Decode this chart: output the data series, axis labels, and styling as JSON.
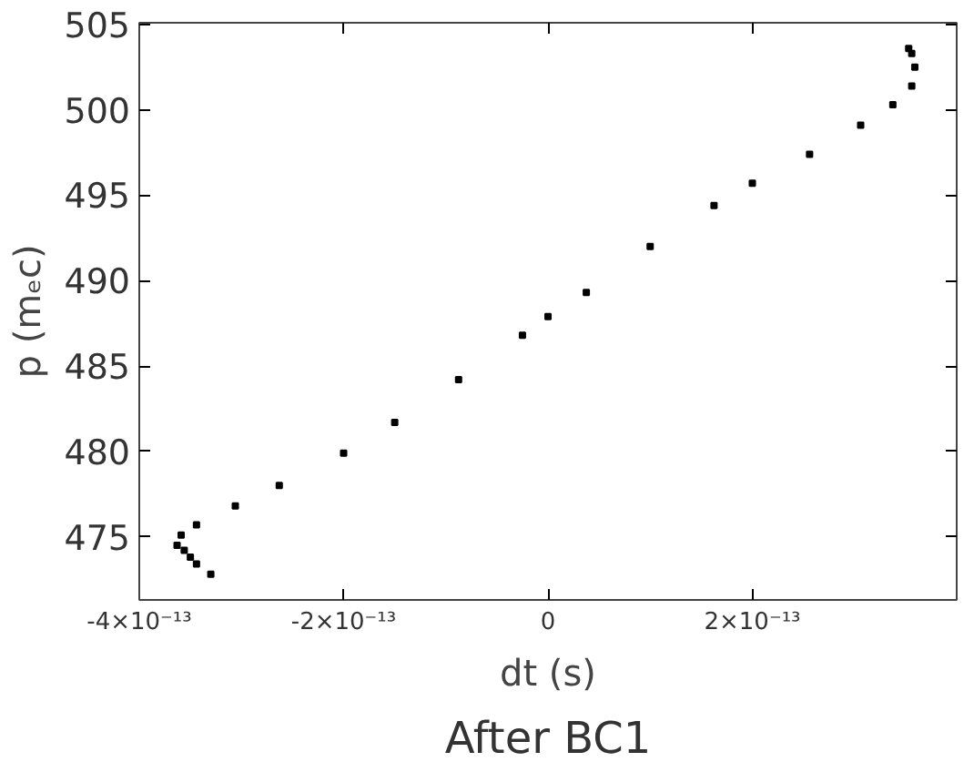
{
  "chart_data": {
    "type": "scatter",
    "title": "After BC1",
    "xlabel": "dt (s)",
    "ylabel": "p (mₑc)",
    "x": [
      -3.3e-13,
      -3.44e-13,
      -3.5e-13,
      -3.56e-13,
      -3.63e-13,
      -3.59e-13,
      -3.44e-13,
      -3.06e-13,
      -2.63e-13,
      -2e-13,
      -1.5e-13,
      -8.75e-14,
      -2.5e-14,
      0,
      3.75e-14,
      1e-13,
      1.625e-13,
      2e-13,
      2.56e-13,
      3.06e-13,
      3.375e-13,
      3.56e-13,
      3.59e-13,
      3.56e-13,
      3.53e-13
    ],
    "values": [
      472.8,
      473.4,
      473.8,
      474.2,
      474.5,
      475.1,
      475.7,
      476.8,
      478.0,
      479.9,
      481.7,
      484.2,
      486.8,
      487.9,
      489.3,
      492.0,
      494.4,
      495.7,
      497.4,
      499.1,
      500.3,
      501.4,
      502.5,
      503.3,
      503.6
    ],
    "color": "#000000",
    "marker": "square",
    "xlim": [
      -4e-13,
      4e-13
    ],
    "ylim": [
      471.3,
      505.1
    ],
    "xticks": [
      {
        "value": -4e-13,
        "label": "-4×10⁻¹³"
      },
      {
        "value": -2e-13,
        "label": "-2×10⁻¹³"
      },
      0,
      {
        "value": 2e-13,
        "label": "2×10⁻¹³"
      }
    ],
    "yticks": [
      475,
      480,
      485,
      490,
      495,
      500,
      505
    ],
    "grid": false
  }
}
